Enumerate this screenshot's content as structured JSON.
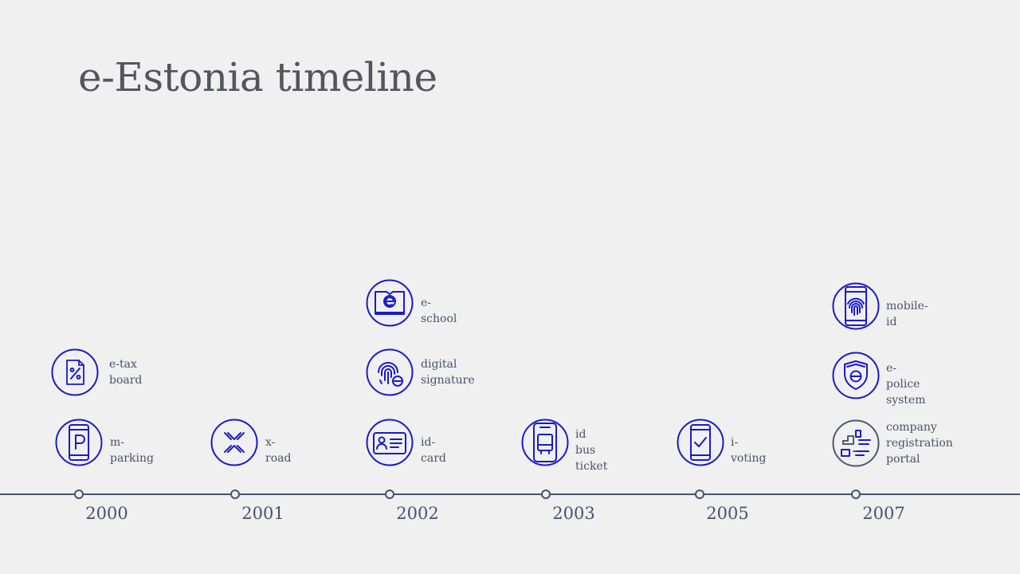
{
  "title": "e-Estonia timeline",
  "colors": {
    "accent": "#1a1ac8",
    "axis": "#46536a",
    "muted": "#54565b"
  },
  "years": [
    "2000",
    "2001",
    "2002",
    "2003",
    "2005",
    "2007"
  ],
  "items": [
    {
      "name": "e-tax-board",
      "icon": "tax-document-icon",
      "label": "e-tax\nboard",
      "year": "2000"
    },
    {
      "name": "m-parking",
      "icon": "parking-phone-icon",
      "label": "m-parking",
      "year": "2000"
    },
    {
      "name": "x-road",
      "icon": "x-road-icon",
      "label": "x-road",
      "year": "2001"
    },
    {
      "name": "e-school",
      "icon": "e-book-icon",
      "label": "e-school",
      "year": "2002"
    },
    {
      "name": "digital-signature",
      "icon": "fingerprint-icon",
      "label": "digital\nsignature",
      "year": "2002"
    },
    {
      "name": "id-card",
      "icon": "id-card-icon",
      "label": "id-card",
      "year": "2002"
    },
    {
      "name": "id-bus-ticket",
      "icon": "bus-ticket-phone-icon",
      "label": "id bus\nticket",
      "year": "2003"
    },
    {
      "name": "i-voting",
      "icon": "voting-phone-icon",
      "label": "i-voting",
      "year": "2005"
    },
    {
      "name": "mobile-id",
      "icon": "mobile-fingerprint-icon",
      "label": "mobile-id",
      "year": "2007"
    },
    {
      "name": "e-police-system",
      "icon": "police-shield-icon",
      "label": "e-police\nsystem",
      "year": "2007"
    },
    {
      "name": "company-registration-portal",
      "icon": "registration-forms-icon",
      "label": "company\nregistration\nportal",
      "year": "2007"
    }
  ]
}
